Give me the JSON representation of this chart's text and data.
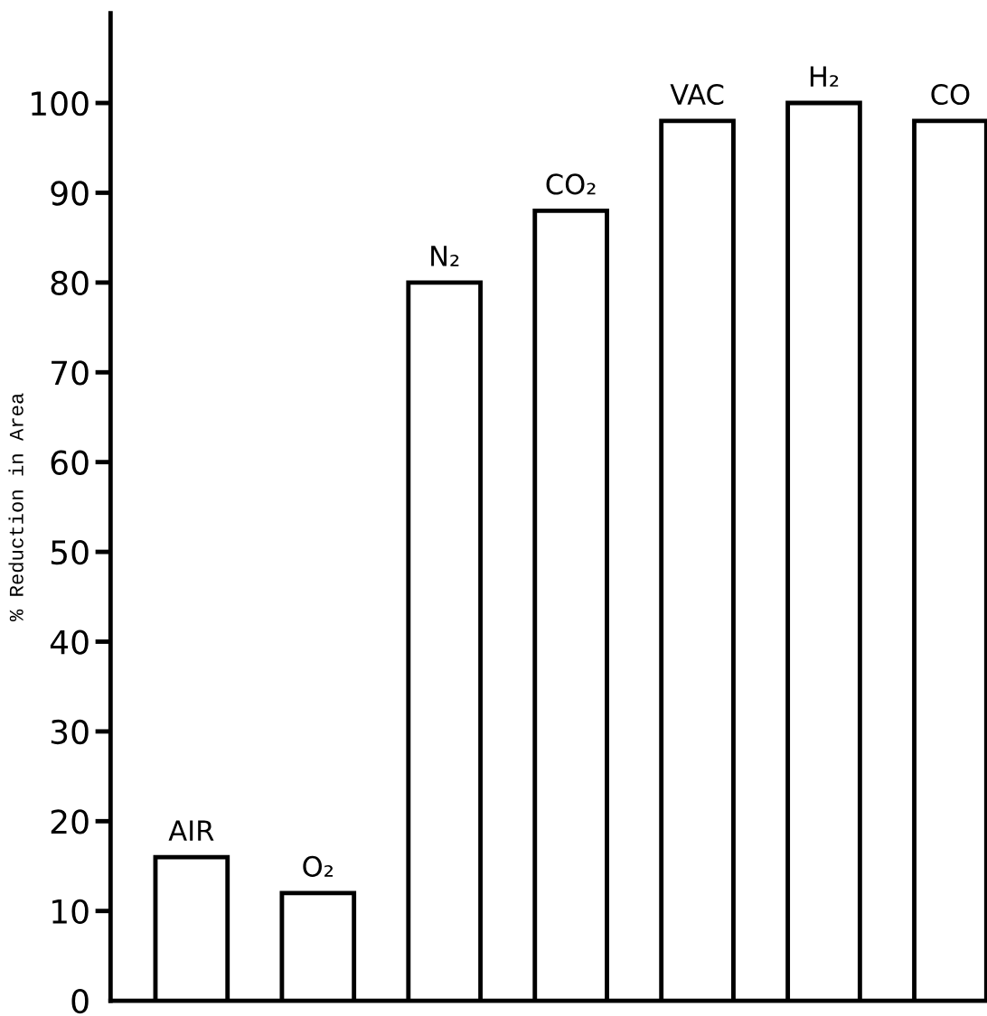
{
  "chart_data": {
    "type": "bar",
    "ylabel": "% Reduction in Area",
    "categories": [
      "AIR",
      "O₂",
      "N₂",
      "CO₂",
      "VAC",
      "H₂",
      "CO"
    ],
    "values": [
      16,
      12,
      80,
      88,
      98,
      100,
      98
    ],
    "color": "#ffffff",
    "ylim": [
      0,
      110
    ],
    "yticks": [
      0,
      10,
      20,
      30,
      40,
      50,
      60,
      70,
      80,
      90,
      100
    ],
    "grid": false,
    "legend": false
  }
}
